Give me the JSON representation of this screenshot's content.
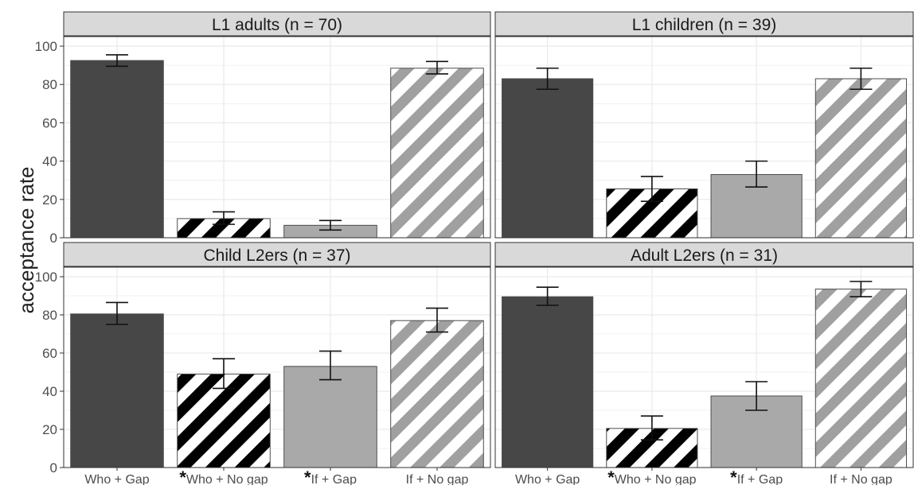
{
  "ylabel": "acceptance rate",
  "colors": {
    "who_gap": "#474747",
    "who_nogap_stripe": "#000000",
    "if_gap": "#a9a9a9",
    "if_nogap_stripe": "#a0a0a0",
    "strip_bg": "#d9d9d9",
    "grid": "#ebebeb",
    "frame": "#333333",
    "error_bar": "#111111"
  },
  "chart_data": [
    {
      "type": "bar",
      "title": "L1 adults (n = 70)",
      "categories": [
        "Who + Gap",
        "*Who + No gap",
        "*If + Gap",
        "If + No gap"
      ],
      "values": [
        92.5,
        10,
        6.5,
        88.5
      ],
      "error_low": [
        89.5,
        7,
        4,
        85.5
      ],
      "error_high": [
        95.5,
        13.5,
        9,
        92
      ],
      "ylim": [
        0,
        105
      ],
      "yticks": [
        0,
        20,
        40,
        60,
        80,
        100
      ]
    },
    {
      "type": "bar",
      "title": "L1 children (n = 39)",
      "categories": [
        "Who + Gap",
        "*Who + No gap",
        "*If + Gap",
        "If + No gap"
      ],
      "values": [
        83,
        25.5,
        33,
        83
      ],
      "error_low": [
        77.5,
        19,
        26.5,
        77.5
      ],
      "error_high": [
        88.5,
        32,
        40,
        88.5
      ],
      "ylim": [
        0,
        105
      ],
      "yticks": [
        0,
        20,
        40,
        60,
        80,
        100
      ]
    },
    {
      "type": "bar",
      "title": "Child L2ers (n = 37)",
      "categories": [
        "Who + Gap",
        "*Who + No gap",
        "*If + Gap",
        "If + No gap"
      ],
      "values": [
        80.5,
        49,
        53,
        77
      ],
      "error_low": [
        75,
        41.5,
        46,
        71
      ],
      "error_high": [
        86.5,
        57,
        61,
        83.5
      ],
      "ylim": [
        0,
        105
      ],
      "yticks": [
        0,
        20,
        40,
        60,
        80,
        100
      ]
    },
    {
      "type": "bar",
      "title": "Adult L2ers (n = 31)",
      "categories": [
        "Who + Gap",
        "*Who + No gap",
        "*If + Gap",
        "If + No gap"
      ],
      "values": [
        89.5,
        20.5,
        37.5,
        93.5
      ],
      "error_low": [
        85,
        14.5,
        30,
        89.5
      ],
      "error_high": [
        94.5,
        27,
        45,
        97.5
      ],
      "ylim": [
        0,
        105
      ],
      "yticks": [
        0,
        20,
        40,
        60,
        80,
        100
      ]
    }
  ]
}
